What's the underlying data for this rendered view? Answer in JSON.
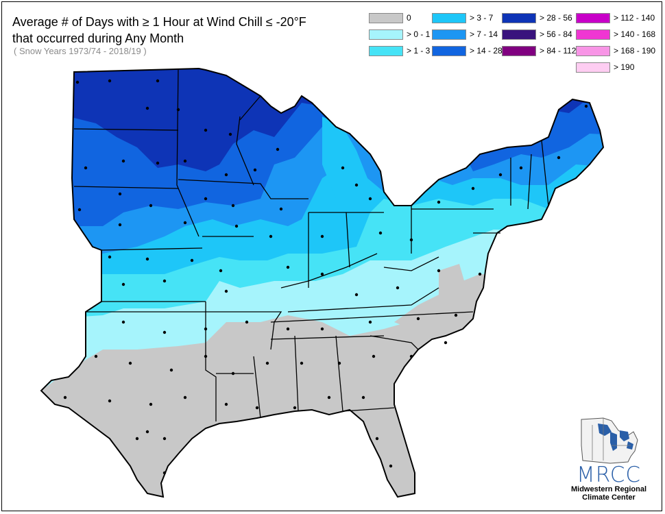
{
  "title": "Average # of Days with ≥ 1 Hour at Wind Chill ≤ -20°F\nthat occurred during Any Month",
  "subtitle": "( Snow Years 1973/74 - 2018/19 )",
  "legend": [
    {
      "label": "0",
      "color": "#c8c8c8"
    },
    {
      "label": "> 0 - 1",
      "color": "#a6f4fc"
    },
    {
      "label": "> 1 - 3",
      "color": "#46e3f6"
    },
    {
      "label": "> 3 - 7",
      "color": "#1ec6f8"
    },
    {
      "label": "> 7 - 14",
      "color": "#1d96f3"
    },
    {
      "label": "> 14 - 28",
      "color": "#1165e0"
    },
    {
      "label": "> 28 - 56",
      "color": "#0e34b6"
    },
    {
      "label": "> 56 - 84",
      "color": "#39137d"
    },
    {
      "label": "> 84 - 112",
      "color": "#800080"
    },
    {
      "label": "> 112 - 140",
      "color": "#c800c8"
    },
    {
      "label": "> 140 - 168",
      "color": "#f036d2"
    },
    {
      "label": "> 168 - 190",
      "color": "#f895e6"
    },
    {
      "label": "> 190",
      "color": "#fecdf2"
    }
  ],
  "logo": {
    "acronym": "MRCC",
    "line1": "Midwestern Regional",
    "line2": "Climate Center"
  }
}
